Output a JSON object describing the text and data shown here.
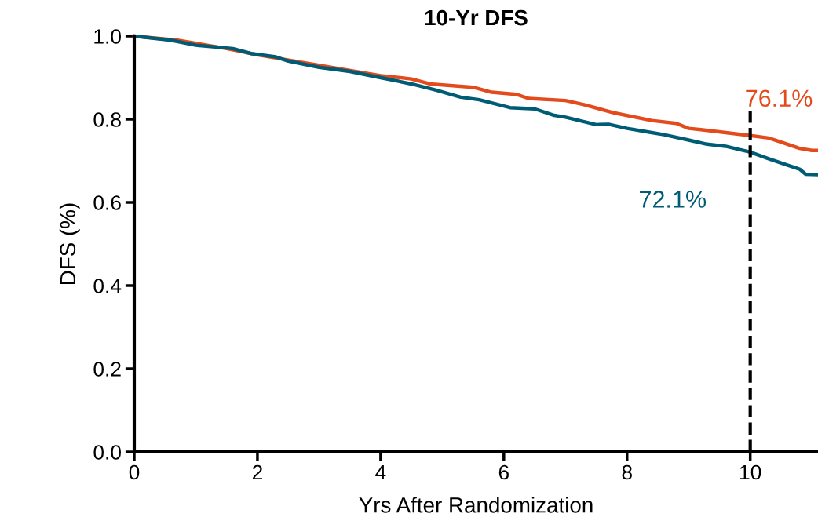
{
  "chart_data": {
    "type": "line",
    "title": "10-Yr DFS",
    "xlabel": "Yrs After Randomization",
    "ylabel": "DFS (%)",
    "xlim": [
      0,
      11.1
    ],
    "ylim": [
      0,
      1.0
    ],
    "xticks": [
      0,
      2,
      4,
      6,
      8,
      10
    ],
    "yticks": [
      {
        "value": 0,
        "label": "0.0"
      },
      {
        "value": 0.2,
        "label": "0.2"
      },
      {
        "value": 0.4,
        "label": "0.4"
      },
      {
        "value": 0.6,
        "label": "0.6"
      },
      {
        "value": 0.8,
        "label": "0.8"
      },
      {
        "value": 1.0,
        "label": "1.0"
      }
    ],
    "grid": false,
    "legend": false,
    "marker": "none",
    "line_style": "solid",
    "series": [
      {
        "color": "#e34a1c",
        "x": [
          0,
          0.7,
          1.5,
          2,
          3,
          4,
          4.5,
          4.8,
          5.5,
          5.8,
          6.2,
          6.4,
          7,
          7.3,
          7.8,
          8.4,
          8.8,
          9,
          9.2,
          9.6,
          10,
          10.3,
          10.5,
          10.8,
          11,
          11.1
        ],
        "values": [
          1.0,
          0.99,
          0.97,
          0.955,
          0.93,
          0.905,
          0.897,
          0.885,
          0.877,
          0.865,
          0.86,
          0.85,
          0.845,
          0.835,
          0.815,
          0.797,
          0.79,
          0.778,
          0.775,
          0.768,
          0.761,
          0.755,
          0.745,
          0.73,
          0.725,
          0.725
        ]
      },
      {
        "color": "#005b74",
        "x": [
          0,
          0.6,
          1.0,
          1.6,
          1.9,
          2.3,
          2.5,
          3,
          3.5,
          4,
          4.5,
          4.9,
          5.3,
          5.6,
          6.1,
          6.5,
          6.8,
          7,
          7.5,
          7.7,
          8,
          8.4,
          8.6,
          9,
          9.3,
          9.6,
          10,
          10.3,
          10.6,
          10.8,
          10.9,
          11.1
        ],
        "values": [
          1.0,
          0.99,
          0.978,
          0.97,
          0.958,
          0.95,
          0.94,
          0.925,
          0.915,
          0.9,
          0.885,
          0.87,
          0.853,
          0.847,
          0.828,
          0.825,
          0.81,
          0.805,
          0.787,
          0.788,
          0.778,
          0.768,
          0.763,
          0.75,
          0.74,
          0.735,
          0.721,
          0.705,
          0.69,
          0.68,
          0.668,
          0.667
        ]
      }
    ],
    "annotations": [
      {
        "text": "76.1%",
        "x": 10,
        "y": 0.761
      },
      {
        "text": "72.1%",
        "x": 10,
        "y": 0.721
      }
    ],
    "ref_lines": [
      {
        "axis": "x",
        "value": 10,
        "color": "#000000",
        "line_style": "dashed"
      }
    ]
  }
}
